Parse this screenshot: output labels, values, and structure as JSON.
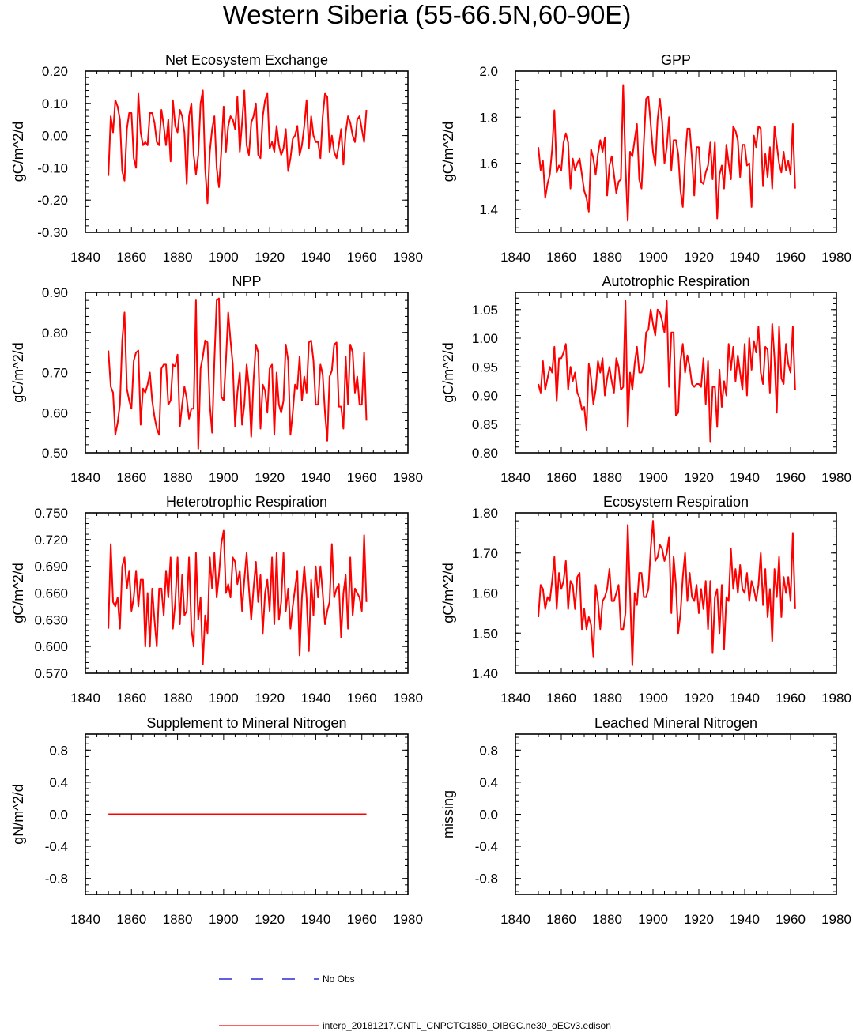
{
  "title": "Western Siberia (55-66.5N,60-90E)",
  "colors": {
    "model": "#ff0000",
    "obs": "#0000cc"
  },
  "legend": {
    "obs_label": "No Obs",
    "model_label": "interp_20181217.CNTL_CNPCTC1850_OIBGC.ne30_oECv3.edison"
  },
  "chart_data": [
    {
      "type": "line",
      "title": "Net Ecosystem Exchange",
      "ylabel": "gC/m^2/d",
      "xlim": [
        1840,
        1980
      ],
      "ylim": [
        -0.3,
        0.2
      ],
      "xticks": [
        1840,
        1860,
        1880,
        1900,
        1920,
        1940,
        1960,
        1980
      ],
      "xtick_labels": [
        "1840",
        "1860",
        "1880",
        "1900",
        "1920",
        "1940",
        "1960",
        "1980"
      ],
      "yticks": [
        -0.3,
        -0.2,
        -0.1,
        0.0,
        0.1,
        0.2
      ],
      "ytick_labels": [
        "-0.30",
        "-0.20",
        "-0.10",
        "0.00",
        "0.10",
        "0.20"
      ],
      "x_start": 1850,
      "series": [
        {
          "name": "interp_20181217.CNTL_CNPCTC1850_OIBGC.ne30_oECv3.edison",
          "values": [
            -0.125,
            0.06,
            0.01,
            0.11,
            0.09,
            0.05,
            -0.11,
            -0.14,
            0.02,
            0.07,
            0.07,
            -0.07,
            -0.1,
            0.13,
            0.01,
            -0.03,
            -0.02,
            -0.03,
            0.07,
            0.07,
            0.04,
            -0.02,
            -0.03,
            0.08,
            0.03,
            -0.03,
            0.05,
            -0.08,
            0.11,
            0.03,
            0.01,
            0.08,
            0.06,
            0.01,
            -0.15,
            0.06,
            0.1,
            -0.06,
            -0.12,
            -0.06,
            0.1,
            0.14,
            -0.1,
            -0.21,
            -0.05,
            0.02,
            0.06,
            -0.1,
            -0.16,
            -0.05,
            0.09,
            -0.05,
            0.03,
            0.06,
            0.05,
            0.02,
            0.12,
            -0.05,
            0.04,
            0.14,
            -0.03,
            -0.06,
            0.04,
            0.06,
            0.1,
            -0.06,
            -0.07,
            0.06,
            0.11,
            0.13,
            -0.04,
            -0.02,
            -0.05,
            0.03,
            -0.03,
            -0.06,
            -0.04,
            0.02,
            -0.11,
            -0.07,
            -0.01,
            0.0,
            0.03,
            -0.06,
            -0.03,
            0.03,
            0.11,
            -0.04,
            0.06,
            0.0,
            -0.02,
            -0.02,
            -0.07,
            0.06,
            0.13,
            0.12,
            -0.05,
            0.0,
            -0.05,
            -0.07,
            -0.03,
            0.02,
            -0.09,
            0.01,
            0.06,
            0.04,
            0.0,
            -0.02,
            0.05,
            0.06,
            0.02,
            -0.02,
            0.08
          ]
        }
      ]
    },
    {
      "type": "line",
      "title": "GPP",
      "ylabel": "gC/m^2/d",
      "xlim": [
        1840,
        1980
      ],
      "ylim": [
        1.3,
        2.0
      ],
      "xticks": [
        1840,
        1860,
        1880,
        1900,
        1920,
        1940,
        1960,
        1980
      ],
      "xtick_labels": [
        "1840",
        "1860",
        "1880",
        "1900",
        "1920",
        "1940",
        "1960",
        "1980"
      ],
      "yticks": [
        1.4,
        1.6,
        1.8,
        2.0
      ],
      "ytick_labels": [
        "1.4",
        "1.6",
        "1.8",
        "2.0"
      ],
      "x_start": 1850,
      "series": [
        {
          "name": "interp_20181217.CNTL_CNPCTC1850_OIBGC.ne30_oECv3.edison",
          "values": [
            1.67,
            1.57,
            1.61,
            1.45,
            1.51,
            1.55,
            1.66,
            1.83,
            1.56,
            1.59,
            1.57,
            1.69,
            1.73,
            1.69,
            1.49,
            1.62,
            1.57,
            1.6,
            1.62,
            1.55,
            1.48,
            1.45,
            1.39,
            1.66,
            1.62,
            1.55,
            1.64,
            1.7,
            1.65,
            1.71,
            1.46,
            1.59,
            1.63,
            1.55,
            1.47,
            1.52,
            1.53,
            1.94,
            1.59,
            1.35,
            1.65,
            1.63,
            1.7,
            1.77,
            1.53,
            1.49,
            1.69,
            1.88,
            1.89,
            1.77,
            1.65,
            1.59,
            1.79,
            1.88,
            1.78,
            1.6,
            1.67,
            1.8,
            1.57,
            1.7,
            1.7,
            1.64,
            1.48,
            1.41,
            1.62,
            1.75,
            1.75,
            1.62,
            1.46,
            1.67,
            1.67,
            1.52,
            1.51,
            1.56,
            1.59,
            1.69,
            1.53,
            1.69,
            1.36,
            1.55,
            1.59,
            1.49,
            1.68,
            1.6,
            1.53,
            1.76,
            1.74,
            1.7,
            1.54,
            1.68,
            1.68,
            1.59,
            1.6,
            1.41,
            1.72,
            1.67,
            1.76,
            1.75,
            1.5,
            1.64,
            1.54,
            1.67,
            1.49,
            1.76,
            1.68,
            1.6,
            1.56,
            1.65,
            1.57,
            1.61,
            1.55,
            1.77,
            1.49
          ]
        }
      ]
    },
    {
      "type": "line",
      "title": "NPP",
      "ylabel": "gC/m^2/d",
      "xlim": [
        1840,
        1980
      ],
      "ylim": [
        0.5,
        0.9
      ],
      "xticks": [
        1840,
        1860,
        1880,
        1900,
        1920,
        1940,
        1960,
        1980
      ],
      "xtick_labels": [
        "1840",
        "1860",
        "1880",
        "1900",
        "1920",
        "1940",
        "1960",
        "1980"
      ],
      "yticks": [
        0.5,
        0.6,
        0.7,
        0.8,
        0.9
      ],
      "ytick_labels": [
        "0.50",
        "0.60",
        "0.70",
        "0.80",
        "0.90"
      ],
      "x_start": 1850,
      "series": [
        {
          "name": "interp_20181217.CNTL_CNPCTC1850_OIBGC.ne30_oECv3.edison",
          "values": [
            0.755,
            0.665,
            0.65,
            0.545,
            0.575,
            0.62,
            0.78,
            0.85,
            0.66,
            0.63,
            0.61,
            0.73,
            0.75,
            0.755,
            0.57,
            0.66,
            0.65,
            0.67,
            0.7,
            0.63,
            0.59,
            0.56,
            0.545,
            0.71,
            0.72,
            0.72,
            0.62,
            0.63,
            0.72,
            0.715,
            0.745,
            0.565,
            0.62,
            0.665,
            0.635,
            0.585,
            0.61,
            0.61,
            0.88,
            0.51,
            0.71,
            0.74,
            0.78,
            0.775,
            0.62,
            0.55,
            0.73,
            0.88,
            0.885,
            0.64,
            0.63,
            0.73,
            0.85,
            0.78,
            0.72,
            0.565,
            0.65,
            0.7,
            0.57,
            0.62,
            0.72,
            0.665,
            0.54,
            0.68,
            0.77,
            0.75,
            0.56,
            0.67,
            0.655,
            0.6,
            0.71,
            0.72,
            0.545,
            0.7,
            0.62,
            0.6,
            0.63,
            0.77,
            0.73,
            0.545,
            0.6,
            0.67,
            0.66,
            0.74,
            0.63,
            0.69,
            0.65,
            0.775,
            0.78,
            0.73,
            0.62,
            0.62,
            0.72,
            0.695,
            0.6,
            0.53,
            0.69,
            0.705,
            0.77,
            0.775,
            0.615,
            0.615,
            0.56,
            0.74,
            0.62,
            0.77,
            0.75,
            0.65,
            0.69,
            0.62,
            0.62,
            0.75,
            0.58
          ]
        }
      ]
    },
    {
      "type": "line",
      "title": "Autotrophic Respiration",
      "ylabel": "gC/m^2/d",
      "xlim": [
        1840,
        1980
      ],
      "ylim": [
        0.8,
        1.08
      ],
      "xticks": [
        1840,
        1860,
        1880,
        1900,
        1920,
        1940,
        1960,
        1980
      ],
      "xtick_labels": [
        "1840",
        "1860",
        "1880",
        "1900",
        "1920",
        "1940",
        "1960",
        "1980"
      ],
      "yticks": [
        0.8,
        0.85,
        0.9,
        0.95,
        1.0,
        1.05
      ],
      "ytick_labels": [
        "0.80",
        "0.85",
        "0.90",
        "0.95",
        "1.00",
        "1.05"
      ],
      "x_start": 1850,
      "series": [
        {
          "name": "interp_20181217.CNTL_CNPCTC1850_OIBGC.ne30_oECv3.edison",
          "values": [
            0.92,
            0.905,
            0.96,
            0.91,
            0.93,
            0.95,
            0.94,
            0.985,
            0.89,
            0.965,
            0.965,
            0.975,
            0.99,
            0.91,
            0.95,
            0.925,
            0.94,
            0.905,
            0.895,
            0.875,
            0.88,
            0.84,
            0.955,
            0.93,
            0.885,
            0.91,
            0.96,
            0.94,
            0.965,
            0.9,
            0.93,
            0.95,
            0.925,
            0.905,
            0.965,
            0.95,
            0.91,
            0.915,
            1.065,
            0.845,
            0.94,
            0.91,
            0.955,
            0.985,
            0.94,
            0.94,
            0.955,
            1.01,
            1.015,
            1.05,
            1.025,
            1.005,
            1.05,
            1.045,
            1.03,
            1.01,
            1.065,
            0.915,
            1.01,
            1.01,
            0.865,
            0.87,
            0.96,
            0.99,
            0.94,
            0.97,
            0.95,
            0.92,
            0.915,
            0.92,
            0.92,
            0.915,
            0.965,
            0.885,
            0.96,
            0.82,
            0.915,
            0.915,
            0.845,
            0.945,
            0.88,
            0.925,
            0.9,
            0.99,
            0.945,
            0.985,
            0.925,
            0.97,
            0.94,
            0.91,
            0.99,
            0.9,
            1.0,
            0.945,
            0.995,
            0.975,
            1.02,
            0.94,
            0.92,
            0.985,
            0.98,
            0.905,
            1.025,
            0.965,
            0.87,
            1.02,
            0.93,
            0.92,
            0.99,
            0.955,
            0.94,
            1.02,
            0.91
          ]
        }
      ]
    },
    {
      "type": "line",
      "title": "Heterotrophic Respiration",
      "ylabel": "gC/m^2/d",
      "xlim": [
        1840,
        1980
      ],
      "ylim": [
        0.57,
        0.75
      ],
      "xticks": [
        1840,
        1860,
        1880,
        1900,
        1920,
        1940,
        1960,
        1980
      ],
      "xtick_labels": [
        "1840",
        "1860",
        "1880",
        "1900",
        "1920",
        "1940",
        "1960",
        "1980"
      ],
      "yticks": [
        0.57,
        0.6,
        0.63,
        0.66,
        0.69,
        0.72,
        0.75
      ],
      "ytick_labels": [
        "0.570",
        "0.600",
        "0.630",
        "0.660",
        "0.690",
        "0.720",
        "0.750"
      ],
      "x_start": 1850,
      "series": [
        {
          "name": "interp_20181217.CNTL_CNPCTC1850_OIBGC.ne30_oECv3.edison",
          "values": [
            0.62,
            0.715,
            0.65,
            0.645,
            0.655,
            0.62,
            0.69,
            0.7,
            0.665,
            0.685,
            0.64,
            0.655,
            0.685,
            0.645,
            0.675,
            0.675,
            0.6,
            0.66,
            0.6,
            0.665,
            0.63,
            0.6,
            0.665,
            0.665,
            0.635,
            0.685,
            0.655,
            0.7,
            0.62,
            0.65,
            0.7,
            0.625,
            0.68,
            0.635,
            0.64,
            0.7,
            0.62,
            0.6,
            0.705,
            0.63,
            0.655,
            0.58,
            0.635,
            0.615,
            0.7,
            0.665,
            0.705,
            0.655,
            0.68,
            0.715,
            0.73,
            0.66,
            0.67,
            0.655,
            0.7,
            0.695,
            0.67,
            0.685,
            0.64,
            0.675,
            0.705,
            0.665,
            0.63,
            0.665,
            0.695,
            0.65,
            0.68,
            0.615,
            0.66,
            0.675,
            0.64,
            0.7,
            0.625,
            0.705,
            0.63,
            0.65,
            0.705,
            0.64,
            0.665,
            0.62,
            0.645,
            0.665,
            0.685,
            0.59,
            0.655,
            0.69,
            0.655,
            0.595,
            0.675,
            0.635,
            0.69,
            0.655,
            0.69,
            0.66,
            0.625,
            0.64,
            0.65,
            0.715,
            0.655,
            0.665,
            0.67,
            0.61,
            0.66,
            0.68,
            0.62,
            0.7,
            0.635,
            0.665,
            0.66,
            0.655,
            0.64,
            0.725,
            0.65
          ]
        }
      ]
    },
    {
      "type": "line",
      "title": "Ecosystem Respiration",
      "ylabel": "gC/m^2/d",
      "xlim": [
        1840,
        1980
      ],
      "ylim": [
        1.4,
        1.8
      ],
      "xticks": [
        1840,
        1860,
        1880,
        1900,
        1920,
        1940,
        1960,
        1980
      ],
      "xtick_labels": [
        "1840",
        "1860",
        "1880",
        "1900",
        "1920",
        "1940",
        "1960",
        "1980"
      ],
      "yticks": [
        1.4,
        1.5,
        1.6,
        1.7,
        1.8
      ],
      "ytick_labels": [
        "1.40",
        "1.50",
        "1.60",
        "1.70",
        "1.80"
      ],
      "x_start": 1850,
      "series": [
        {
          "name": "interp_20181217.CNTL_CNPCTC1850_OIBGC.ne30_oECv3.edison",
          "values": [
            1.54,
            1.62,
            1.61,
            1.56,
            1.59,
            1.58,
            1.63,
            1.69,
            1.56,
            1.65,
            1.61,
            1.63,
            1.68,
            1.56,
            1.63,
            1.62,
            1.56,
            1.64,
            1.65,
            1.51,
            1.56,
            1.51,
            1.54,
            1.52,
            1.44,
            1.62,
            1.58,
            1.51,
            1.58,
            1.59,
            1.61,
            1.66,
            1.58,
            1.58,
            1.6,
            1.62,
            1.51,
            1.51,
            1.55,
            1.77,
            1.6,
            1.42,
            1.6,
            1.57,
            1.65,
            1.65,
            1.59,
            1.59,
            1.61,
            1.71,
            1.78,
            1.68,
            1.69,
            1.72,
            1.71,
            1.68,
            1.7,
            1.74,
            1.55,
            1.69,
            1.62,
            1.5,
            1.55,
            1.64,
            1.7,
            1.58,
            1.65,
            1.59,
            1.58,
            1.62,
            1.55,
            1.61,
            1.56,
            1.63,
            1.51,
            1.63,
            1.45,
            1.59,
            1.61,
            1.5,
            1.62,
            1.46,
            1.59,
            1.58,
            1.71,
            1.61,
            1.66,
            1.6,
            1.67,
            1.61,
            1.6,
            1.65,
            1.58,
            1.63,
            1.61,
            1.58,
            1.62,
            1.7,
            1.57,
            1.66,
            1.54,
            1.61,
            1.48,
            1.66,
            1.59,
            1.69,
            1.54,
            1.64,
            1.6,
            1.64,
            1.58,
            1.75,
            1.56
          ]
        }
      ]
    },
    {
      "type": "line",
      "title": "Supplement to Mineral Nitrogen",
      "ylabel": "gN/m^2/d",
      "xlim": [
        1840,
        1980
      ],
      "ylim": [
        -1.0,
        1.0
      ],
      "xticks": [
        1840,
        1860,
        1880,
        1900,
        1920,
        1940,
        1960,
        1980
      ],
      "xtick_labels": [
        "1840",
        "1860",
        "1880",
        "1900",
        "1920",
        "1940",
        "1960",
        "1980"
      ],
      "yticks": [
        -0.8,
        -0.4,
        0.0,
        0.4,
        0.8
      ],
      "ytick_labels": [
        "-0.8",
        "-0.4",
        "0.0",
        "0.4",
        "0.8"
      ],
      "x_start": 1850,
      "series": [
        {
          "name": "interp_20181217.CNTL_CNPCTC1850_OIBGC.ne30_oECv3.edison",
          "constant": 0.0,
          "x_end": 1962
        }
      ]
    },
    {
      "type": "line",
      "title": "Leached Mineral Nitrogen",
      "ylabel": "missing",
      "xlim": [
        1840,
        1980
      ],
      "ylim": [
        -1.0,
        1.0
      ],
      "xticks": [
        1840,
        1860,
        1880,
        1900,
        1920,
        1940,
        1960,
        1980
      ],
      "xtick_labels": [
        "1840",
        "1860",
        "1880",
        "1900",
        "1920",
        "1940",
        "1960",
        "1980"
      ],
      "yticks": [
        -0.8,
        -0.4,
        0.0,
        0.4,
        0.8
      ],
      "ytick_labels": [
        "-0.8",
        "-0.4",
        "0.0",
        "0.4",
        "0.8"
      ],
      "series": []
    }
  ]
}
